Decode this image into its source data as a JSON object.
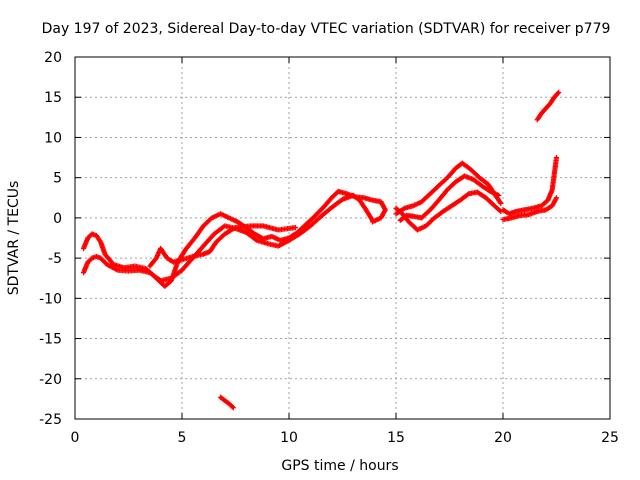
{
  "chart_data": {
    "type": "scatter",
    "title": "Day 197 of 2023, Sidereal Day-to-day VTEC variation (SDTVAR) for receiver p779",
    "xlabel": "GPS time / hours",
    "ylabel": "SDTVAR / TECUs",
    "xlim": [
      0,
      25
    ],
    "ylim": [
      -25,
      20
    ],
    "x_ticks": [
      0,
      5,
      10,
      15,
      20,
      25
    ],
    "y_ticks": [
      -25,
      -20,
      -15,
      -10,
      -5,
      0,
      5,
      10,
      15,
      20
    ],
    "grid": true,
    "marker": "+",
    "color": "#ff0000",
    "series": [
      {
        "name": "track-a",
        "points": [
          [
            0.4,
            -3.8
          ],
          [
            0.6,
            -2.5
          ],
          [
            0.8,
            -2.0
          ],
          [
            1.0,
            -2.2
          ],
          [
            1.2,
            -3.0
          ],
          [
            1.4,
            -4.5
          ],
          [
            1.8,
            -5.8
          ],
          [
            2.3,
            -6.2
          ],
          [
            2.8,
            -6.0
          ],
          [
            3.3,
            -6.3
          ],
          [
            3.8,
            -7.5
          ],
          [
            4.2,
            -8.5
          ],
          [
            4.5,
            -7.8
          ],
          [
            4.8,
            -5.5
          ],
          [
            5.2,
            -3.8
          ],
          [
            5.6,
            -2.5
          ],
          [
            6.0,
            -1.0
          ],
          [
            6.4,
            0.0
          ],
          [
            6.8,
            0.5
          ],
          [
            7.2,
            0.0
          ],
          [
            7.6,
            -0.5
          ],
          [
            8.0,
            -1.2
          ],
          [
            8.4,
            -2.0
          ],
          [
            8.8,
            -2.6
          ],
          [
            9.2,
            -2.3
          ],
          [
            9.6,
            -2.8
          ],
          [
            10.0,
            -2.5
          ],
          [
            10.4,
            -1.8
          ],
          [
            10.8,
            -0.8
          ],
          [
            11.2,
            0.2
          ],
          [
            11.6,
            1.3
          ],
          [
            12.0,
            2.5
          ],
          [
            12.3,
            3.3
          ],
          [
            12.7,
            3.0
          ],
          [
            13.1,
            2.6
          ],
          [
            13.5,
            2.5
          ],
          [
            13.9,
            2.2
          ],
          [
            14.3,
            2.0
          ],
          [
            14.5,
            1.0
          ],
          [
            14.3,
            0.0
          ],
          [
            13.9,
            -0.5
          ]
        ]
      },
      {
        "name": "track-b",
        "points": [
          [
            0.4,
            -6.8
          ],
          [
            0.6,
            -5.5
          ],
          [
            0.8,
            -5.0
          ],
          [
            1.0,
            -4.8
          ],
          [
            1.2,
            -5.0
          ],
          [
            1.5,
            -5.8
          ],
          [
            2.0,
            -6.5
          ],
          [
            2.5,
            -6.6
          ],
          [
            3.0,
            -6.5
          ],
          [
            3.5,
            -6.8
          ],
          [
            4.0,
            -7.8
          ],
          [
            4.5,
            -7.5
          ],
          [
            5.0,
            -6.5
          ],
          [
            5.5,
            -5.0
          ],
          [
            6.0,
            -3.5
          ],
          [
            6.5,
            -2.0
          ],
          [
            7.0,
            -1.0
          ],
          [
            7.5,
            -1.3
          ],
          [
            8.0,
            -1.8
          ],
          [
            8.5,
            -2.8
          ],
          [
            9.0,
            -3.2
          ],
          [
            9.5,
            -3.5
          ],
          [
            10.0,
            -2.8
          ],
          [
            10.5,
            -2.0
          ],
          [
            11.0,
            -1.0
          ],
          [
            11.5,
            0.2
          ],
          [
            12.0,
            1.3
          ],
          [
            12.5,
            2.3
          ],
          [
            13.0,
            2.8
          ],
          [
            13.3,
            2.2
          ],
          [
            13.6,
            1.0
          ],
          [
            13.9,
            -0.3
          ]
        ]
      },
      {
        "name": "track-c",
        "points": [
          [
            3.5,
            -6.0
          ],
          [
            3.8,
            -5.0
          ],
          [
            4.0,
            -3.8
          ],
          [
            4.3,
            -5.0
          ],
          [
            4.6,
            -5.5
          ],
          [
            5.0,
            -5.2
          ],
          [
            5.5,
            -4.8
          ],
          [
            6.0,
            -4.5
          ],
          [
            6.3,
            -4.2
          ],
          [
            6.6,
            -3.0
          ],
          [
            7.0,
            -2.0
          ],
          [
            7.5,
            -1.2
          ],
          [
            8.2,
            -1.0
          ],
          [
            8.8,
            -1.0
          ],
          [
            9.5,
            -1.5
          ],
          [
            10.3,
            -1.2
          ]
        ]
      },
      {
        "name": "track-d",
        "points": [
          [
            15.0,
            1.2
          ],
          [
            15.3,
            0.5
          ],
          [
            15.6,
            -0.5
          ],
          [
            16.0,
            -1.5
          ],
          [
            16.4,
            -1.0
          ],
          [
            16.8,
            0.0
          ],
          [
            17.2,
            0.8
          ],
          [
            17.6,
            1.5
          ],
          [
            18.0,
            2.2
          ],
          [
            18.4,
            3.0
          ],
          [
            18.8,
            3.2
          ],
          [
            19.2,
            2.5
          ],
          [
            19.6,
            1.5
          ],
          [
            19.9,
            0.8
          ]
        ]
      },
      {
        "name": "track-e",
        "points": [
          [
            15.0,
            0.5
          ],
          [
            15.4,
            1.2
          ],
          [
            15.8,
            1.5
          ],
          [
            16.2,
            2.0
          ],
          [
            16.6,
            3.0
          ],
          [
            17.0,
            4.0
          ],
          [
            17.4,
            5.0
          ],
          [
            17.8,
            6.2
          ],
          [
            18.1,
            6.8
          ],
          [
            18.5,
            6.0
          ],
          [
            18.9,
            5.0
          ],
          [
            19.3,
            4.2
          ],
          [
            19.6,
            3.0
          ],
          [
            19.9,
            1.8
          ]
        ]
      },
      {
        "name": "track-f",
        "points": [
          [
            15.2,
            -0.3
          ],
          [
            15.5,
            0.3
          ],
          [
            15.8,
            0.2
          ],
          [
            16.2,
            0.0
          ],
          [
            16.6,
            1.0
          ],
          [
            17.0,
            2.2
          ],
          [
            17.4,
            3.5
          ],
          [
            17.8,
            4.5
          ],
          [
            18.2,
            5.2
          ],
          [
            18.6,
            4.8
          ],
          [
            19.0,
            4.0
          ],
          [
            19.4,
            3.3
          ],
          [
            19.8,
            2.8
          ]
        ]
      },
      {
        "name": "track-g",
        "points": [
          [
            20.0,
            1.0
          ],
          [
            20.3,
            0.5
          ],
          [
            20.6,
            0.8
          ],
          [
            21.0,
            1.0
          ],
          [
            21.4,
            1.2
          ],
          [
            21.8,
            1.5
          ],
          [
            22.1,
            2.2
          ],
          [
            22.3,
            3.5
          ],
          [
            22.4,
            5.5
          ],
          [
            22.5,
            7.5
          ]
        ]
      },
      {
        "name": "track-h",
        "points": [
          [
            20.0,
            -0.2
          ],
          [
            20.4,
            0.0
          ],
          [
            20.8,
            0.3
          ],
          [
            21.2,
            0.4
          ],
          [
            21.6,
            0.8
          ],
          [
            22.0,
            1.0
          ],
          [
            22.3,
            1.5
          ],
          [
            22.5,
            2.5
          ]
        ]
      },
      {
        "name": "track-i",
        "points": [
          [
            21.6,
            12.2
          ],
          [
            21.8,
            13.0
          ],
          [
            22.0,
            13.6
          ],
          [
            22.2,
            14.2
          ],
          [
            22.4,
            15.0
          ],
          [
            22.6,
            15.6
          ]
        ]
      },
      {
        "name": "track-j",
        "points": [
          [
            6.8,
            -22.3
          ],
          [
            7.0,
            -22.7
          ],
          [
            7.2,
            -23.1
          ],
          [
            7.4,
            -23.6
          ]
        ]
      }
    ]
  }
}
